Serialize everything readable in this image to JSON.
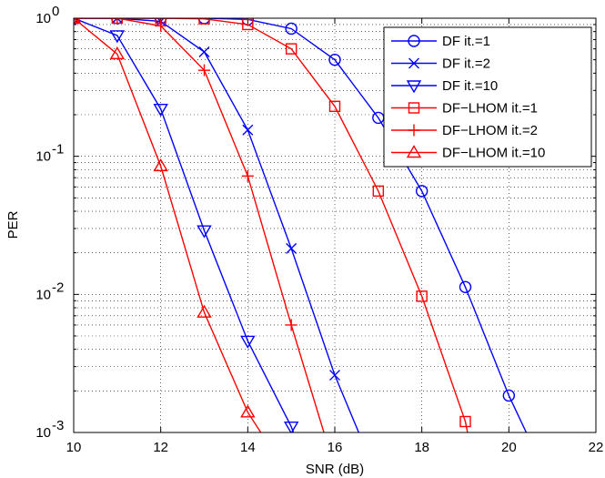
{
  "chart_data": {
    "type": "line",
    "xlabel": "SNR (dB)",
    "ylabel": "PER",
    "xlim": [
      10,
      22
    ],
    "ylim": [
      0.001,
      1
    ],
    "yscale": "log",
    "grid": true,
    "legend_position": "top-right",
    "x_ticks": [
      "10",
      "12",
      "14",
      "16",
      "18",
      "20",
      "22"
    ],
    "y_ticks": [
      {
        "base": "10",
        "exp": "0"
      },
      {
        "base": "10",
        "exp": "-1"
      },
      {
        "base": "10",
        "exp": "-2"
      },
      {
        "base": "10",
        "exp": "-3"
      }
    ],
    "series": [
      {
        "name": "DF it.=1",
        "color": "#0000ff",
        "marker": "circle",
        "points": [
          [
            10,
            1
          ],
          [
            11,
            1
          ],
          [
            12,
            1
          ],
          [
            13,
            1
          ],
          [
            14,
            0.98
          ],
          [
            15,
            0.84
          ],
          [
            16,
            0.5
          ],
          [
            17,
            0.19
          ],
          [
            18,
            0.056
          ],
          [
            19,
            0.0113
          ],
          [
            20,
            0.00185
          ],
          [
            20.4,
            0.001
          ]
        ]
      },
      {
        "name": "DF it.=2",
        "color": "#0000ff",
        "marker": "x",
        "points": [
          [
            10,
            1
          ],
          [
            11,
            1
          ],
          [
            12,
            0.95
          ],
          [
            13,
            0.57
          ],
          [
            14,
            0.155
          ],
          [
            15,
            0.0215
          ],
          [
            16,
            0.0026
          ],
          [
            16.55,
            0.001
          ]
        ]
      },
      {
        "name": "DF it.=10",
        "color": "#0000ff",
        "marker": "triangle-down",
        "points": [
          [
            10,
            1
          ],
          [
            11,
            0.75
          ],
          [
            12,
            0.22
          ],
          [
            13,
            0.029
          ],
          [
            14,
            0.0046
          ],
          [
            15,
            0.0011
          ],
          [
            15.05,
            0.001
          ]
        ]
      },
      {
        "name": "DF−LHOM it.=1",
        "color": "#ff0000",
        "marker": "square",
        "points": [
          [
            10,
            1
          ],
          [
            11,
            1
          ],
          [
            12,
            1
          ],
          [
            13,
            0.99
          ],
          [
            14,
            0.9
          ],
          [
            15,
            0.6
          ],
          [
            16,
            0.23
          ],
          [
            17,
            0.056
          ],
          [
            18,
            0.0097
          ],
          [
            19,
            0.0012
          ],
          [
            19.05,
            0.001
          ]
        ]
      },
      {
        "name": "DF−LHOM it.=2",
        "color": "#ff0000",
        "marker": "plus",
        "points": [
          [
            10,
            1
          ],
          [
            11,
            1
          ],
          [
            12,
            0.88
          ],
          [
            13,
            0.42
          ],
          [
            14,
            0.072
          ],
          [
            15,
            0.006
          ],
          [
            15.75,
            0.001
          ]
        ]
      },
      {
        "name": "DF−LHOM it.=10",
        "color": "#ff0000",
        "marker": "triangle-up",
        "points": [
          [
            10,
            1
          ],
          [
            11,
            0.55
          ],
          [
            12,
            0.085
          ],
          [
            13,
            0.0074
          ],
          [
            14,
            0.0014
          ],
          [
            14.3,
            0.001
          ]
        ]
      }
    ]
  }
}
